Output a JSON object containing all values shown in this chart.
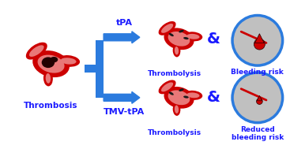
{
  "bg_color": "#ffffff",
  "arrow_color": "#2b7bde",
  "vessel_outer": "#cc0000",
  "vessel_inner": "#e87878",
  "clot_color": "#220000",
  "nanoparticle_color": "#1a1a1a",
  "circle_bg": "#c0c0c0",
  "circle_border": "#2b7bde",
  "drop_color": "#cc0000",
  "scratch_color": "#cc0000",
  "text_color": "#1a1aff",
  "labels": {
    "thrombosis": "Thrombosis",
    "tpa": "tPA",
    "tmv_tpa": "TMV-tPA",
    "thrombolysis": "Thrombolysis",
    "bleeding_risk": "Bleeding risk",
    "reduced": "Reduced\nbleeding risk"
  }
}
